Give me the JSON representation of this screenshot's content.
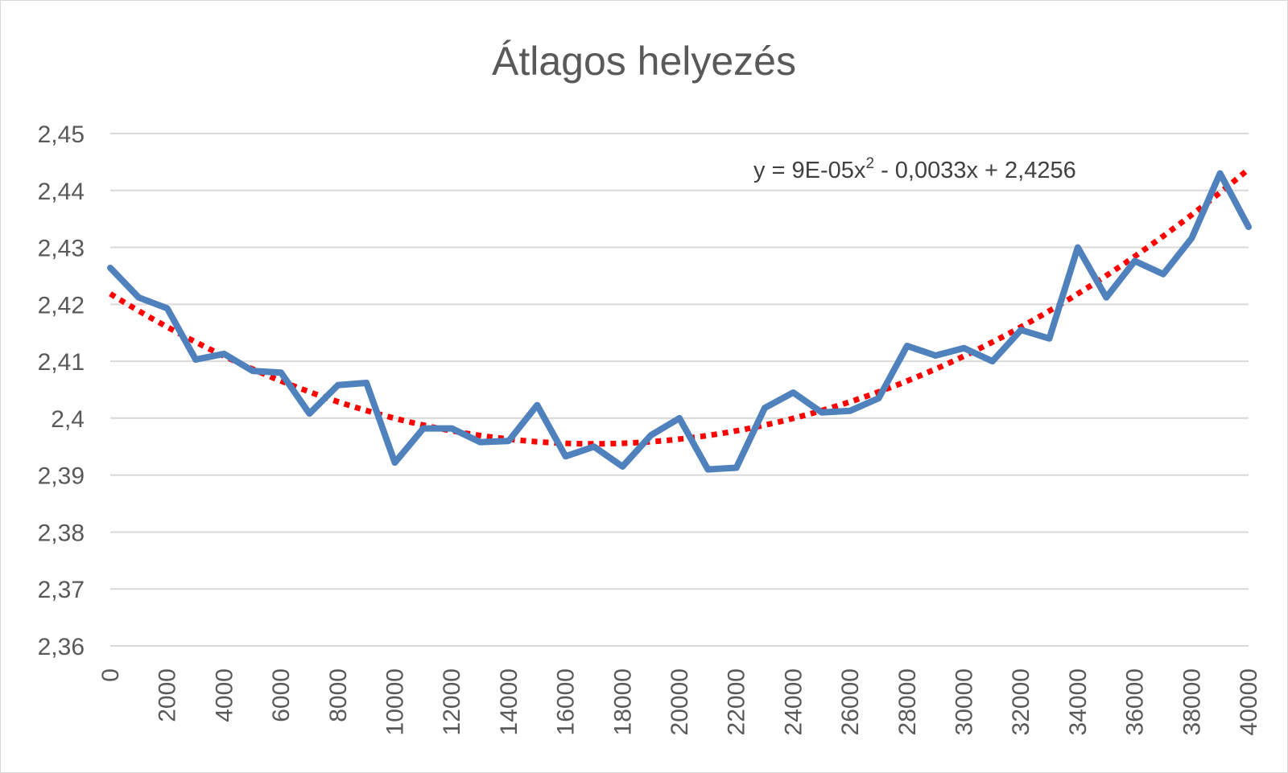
{
  "chart_data": {
    "type": "line",
    "title": "Átlagos helyezés",
    "xlabel": "",
    "ylabel": "",
    "ylim": [
      2.36,
      2.45
    ],
    "xlim": [
      0,
      40000
    ],
    "grid": true,
    "legend": "none",
    "y_tick_labels": [
      "2,36",
      "2,37",
      "2,38",
      "2,39",
      "2,4",
      "2,41",
      "2,42",
      "2,43",
      "2,44",
      "2,45"
    ],
    "y_ticks": [
      2.36,
      2.37,
      2.38,
      2.39,
      2.4,
      2.41,
      2.42,
      2.43,
      2.44,
      2.45
    ],
    "x_tick_labels": [
      "0",
      "2000",
      "4000",
      "6000",
      "8000",
      "10000",
      "12000",
      "14000",
      "16000",
      "18000",
      "20000",
      "22000",
      "24000",
      "26000",
      "28000",
      "30000",
      "32000",
      "34000",
      "36000",
      "38000",
      "40000"
    ],
    "x": [
      0,
      1000,
      2000,
      3000,
      4000,
      5000,
      6000,
      7000,
      8000,
      9000,
      10000,
      11000,
      12000,
      13000,
      14000,
      15000,
      16000,
      17000,
      18000,
      19000,
      20000,
      21000,
      22000,
      23000,
      24000,
      25000,
      26000,
      27000,
      28000,
      29000,
      30000,
      31000,
      32000,
      33000,
      34000,
      35000,
      36000,
      37000,
      38000,
      39000,
      40000
    ],
    "series": [
      {
        "values": [
          2.4264,
          2.4212,
          2.4193,
          2.4103,
          2.4113,
          2.4083,
          2.408,
          2.4008,
          2.4058,
          2.4062,
          2.3922,
          2.3982,
          2.3982,
          2.3958,
          2.396,
          2.4023,
          2.3933,
          2.395,
          2.3915,
          2.397,
          2.4,
          2.391,
          2.3913,
          2.4018,
          2.4045,
          2.401,
          2.4013,
          2.4035,
          2.4127,
          2.411,
          2.4123,
          2.41,
          2.4155,
          2.414,
          2.43,
          2.4212,
          2.4276,
          2.4253,
          2.4316,
          2.443,
          2.4336
        ],
        "color": "#4f81bd"
      }
    ],
    "trendline": {
      "type": "polynomial",
      "order": 2,
      "label": "y = 9E-05x",
      "label_sup": "2",
      "label_rest": " - 0,0033x + 2,4256",
      "color": "#ff0000",
      "start_y": 2.4228,
      "min_y": 2.3955,
      "min_x": 17000,
      "end_y": 2.442
    }
  }
}
